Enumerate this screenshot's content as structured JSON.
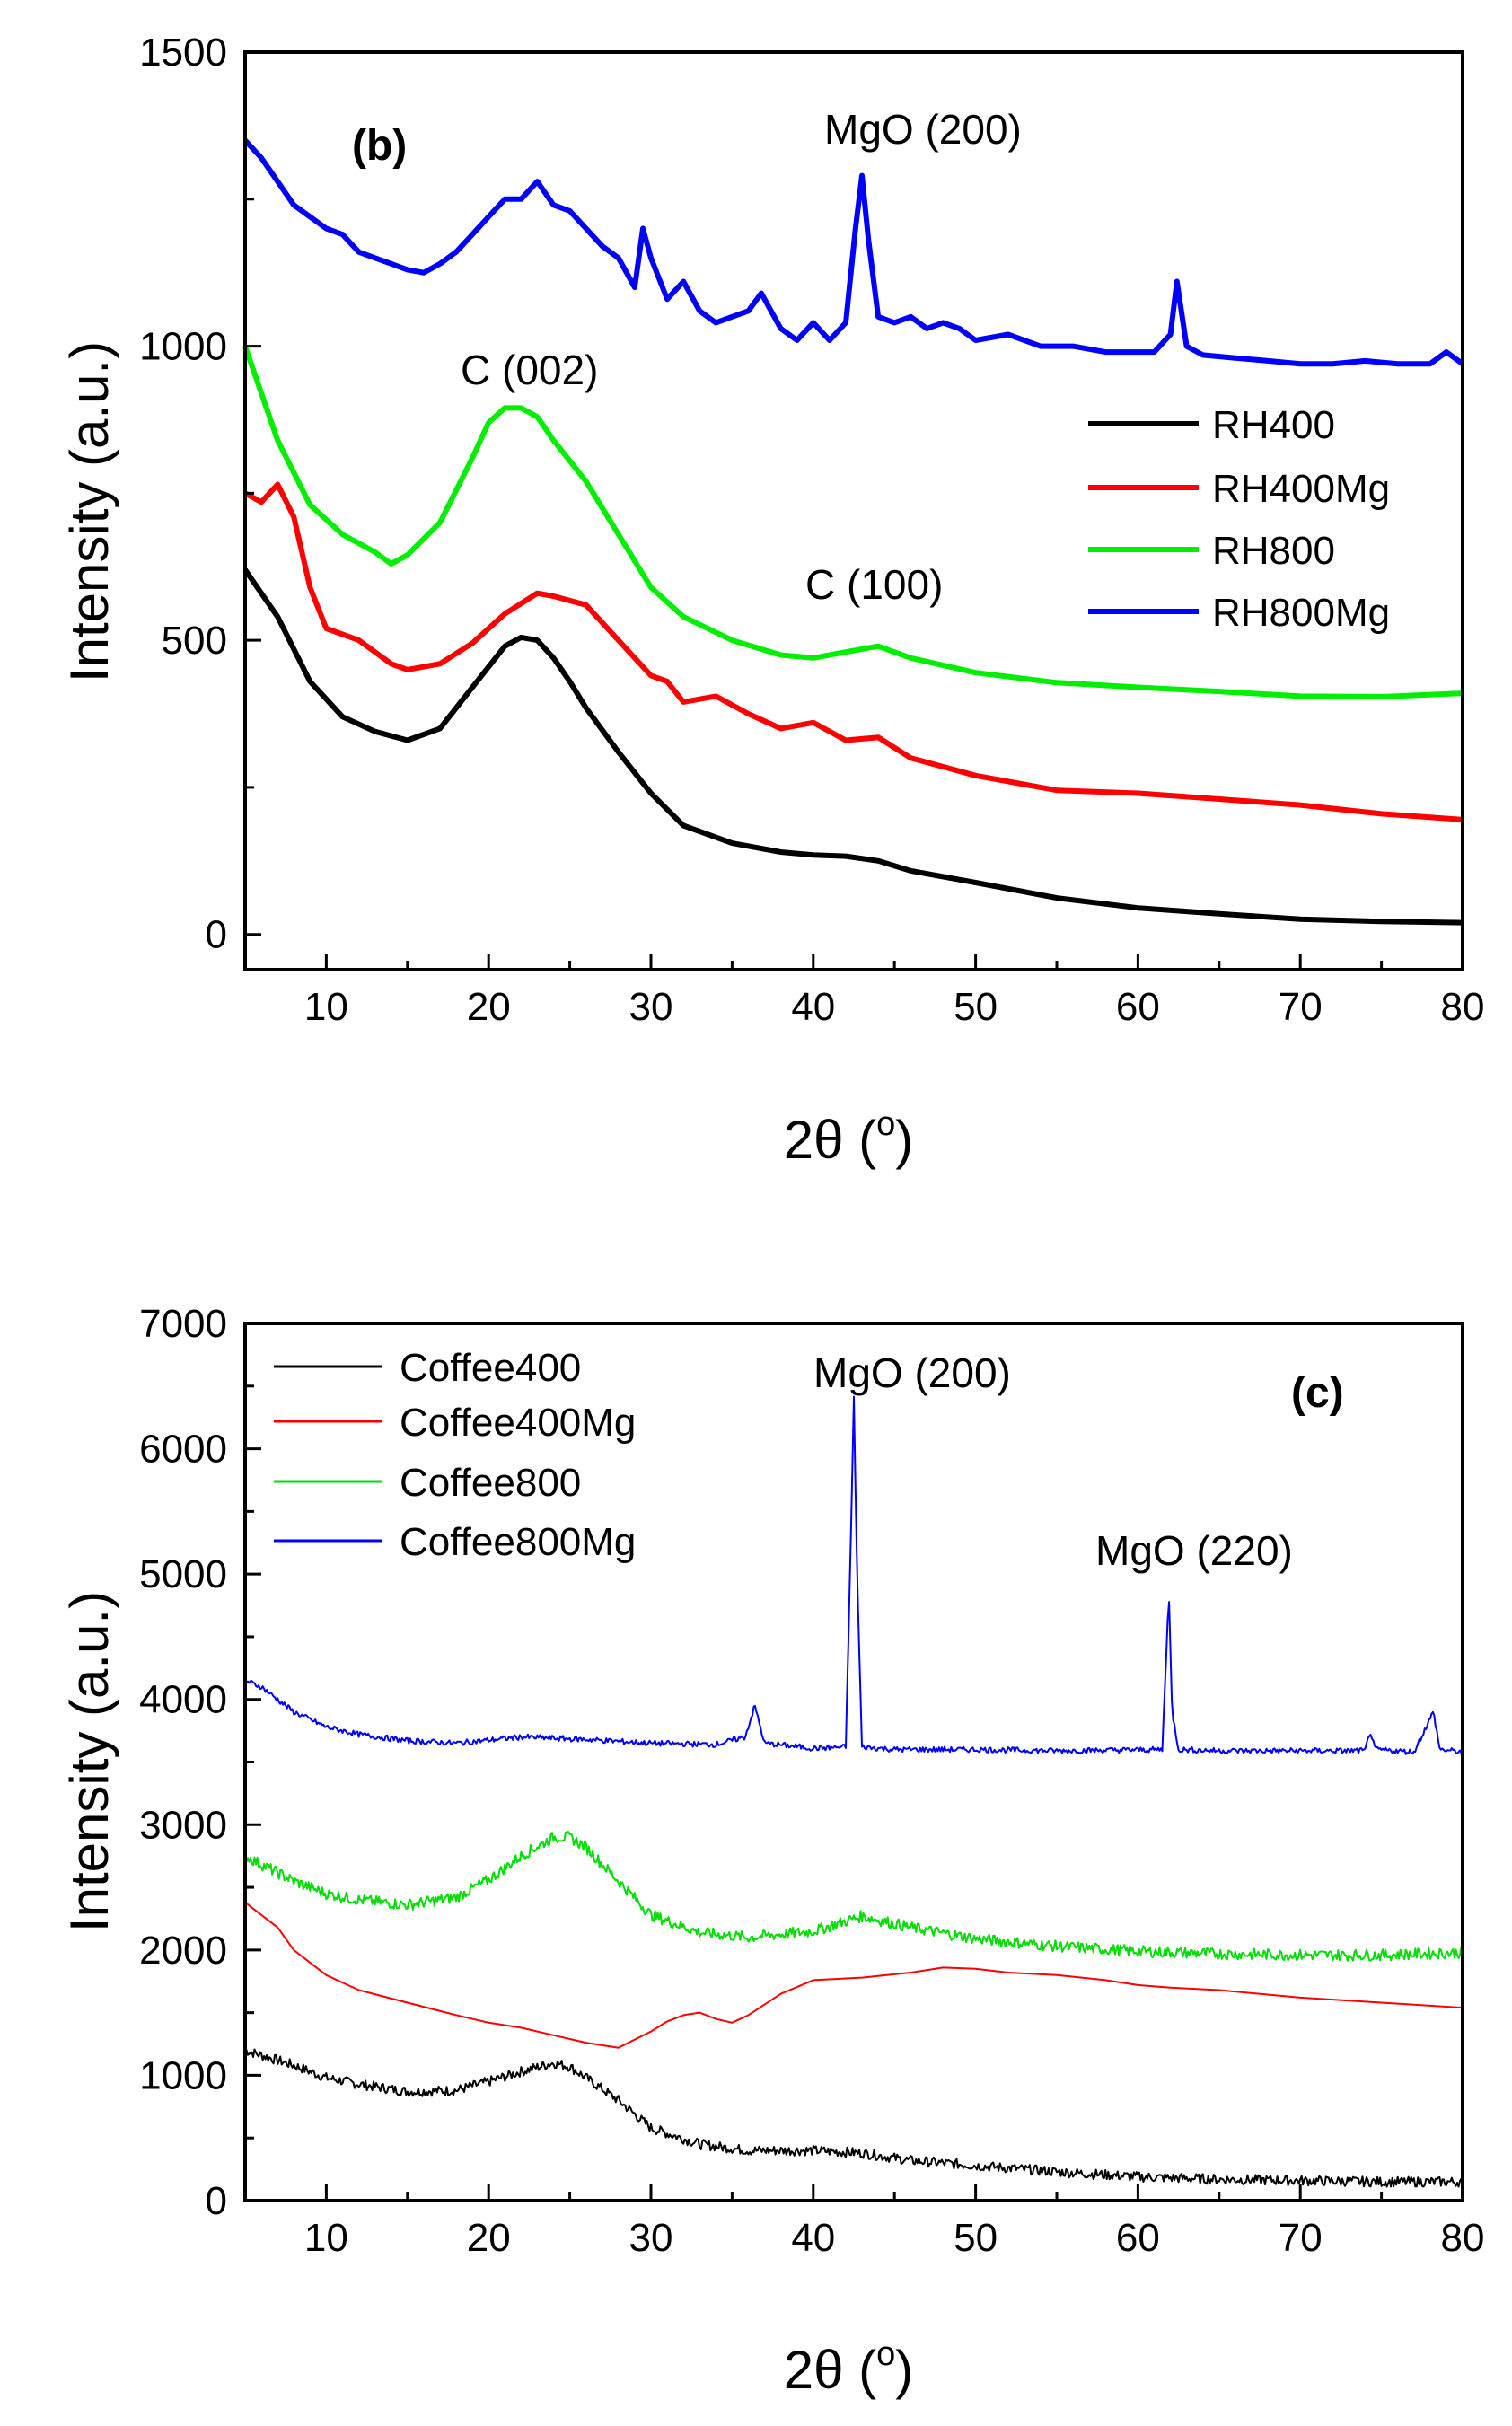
{
  "chart_data": [
    {
      "type": "line",
      "panel_label": "(b)",
      "xlabel": "2θ (",
      "xlabel_sup": "o",
      "xlabel_close": ")",
      "ylabel": "Intensity (a.u.)",
      "xlim": [
        5,
        80
      ],
      "ylim": [
        -60,
        1500
      ],
      "xticks": [
        10,
        20,
        30,
        40,
        50,
        60,
        70,
        80
      ],
      "yticks": [
        0,
        500,
        1000,
        1500
      ],
      "grid": false,
      "legend_position": "right, middle",
      "annotations": [
        {
          "text": "MgO (200)",
          "x": 43,
          "y": 1375
        },
        {
          "text": "C (002)",
          "x": 22,
          "y": 975
        },
        {
          "text": "C (100)",
          "x": 43,
          "y": 575
        }
      ],
      "series": [
        {
          "name": "RH400",
          "color": "#000000",
          "line_width": 6,
          "x": [
            5,
            7,
            9,
            11,
            13,
            15,
            17,
            19,
            20,
            21,
            22,
            23,
            24,
            25,
            26,
            28,
            30,
            32,
            35,
            38,
            40,
            42,
            44,
            46,
            50,
            55,
            60,
            65,
            70,
            75,
            80
          ],
          "y": [
            620,
            540,
            430,
            370,
            345,
            330,
            350,
            420,
            455,
            490,
            505,
            500,
            470,
            430,
            385,
            310,
            240,
            185,
            155,
            140,
            135,
            133,
            125,
            108,
            88,
            62,
            45,
            35,
            26,
            22,
            20
          ]
        },
        {
          "name": "RH400Mg",
          "color": "#ff0000",
          "line_width": 6,
          "x": [
            5,
            6,
            7,
            8,
            9,
            10,
            12,
            14,
            15,
            17,
            19,
            21,
            23,
            24,
            26,
            28,
            30,
            31,
            32,
            34,
            36,
            38,
            40,
            42,
            44,
            46,
            50,
            55,
            60,
            65,
            70,
            75,
            80
          ],
          "y": [
            750,
            735,
            765,
            710,
            590,
            520,
            500,
            460,
            450,
            460,
            495,
            545,
            580,
            575,
            560,
            500,
            440,
            430,
            395,
            405,
            375,
            350,
            360,
            330,
            335,
            300,
            270,
            245,
            240,
            230,
            220,
            205,
            195
          ]
        },
        {
          "name": "RH800",
          "color": "#00ee00",
          "line_width": 6,
          "x": [
            5,
            7,
            9,
            11,
            13,
            14,
            15,
            17,
            19,
            20,
            21,
            22,
            23,
            24,
            26,
            28,
            30,
            32,
            35,
            38,
            40,
            42,
            44,
            46,
            50,
            55,
            60,
            65,
            70,
            75,
            80
          ],
          "y": [
            1000,
            840,
            730,
            680,
            650,
            630,
            645,
            700,
            810,
            870,
            895,
            895,
            880,
            840,
            770,
            680,
            590,
            540,
            500,
            475,
            470,
            480,
            490,
            470,
            445,
            428,
            420,
            413,
            405,
            404,
            410
          ]
        },
        {
          "name": "RH800Mg",
          "color": "#0000ff",
          "line_width": 6,
          "x": [
            5,
            6,
            7,
            8,
            9,
            10,
            11,
            12,
            13,
            14,
            15,
            16,
            17,
            18,
            19,
            20,
            21,
            22,
            23,
            24,
            25,
            26,
            27,
            28,
            29,
            29.5,
            30,
            31,
            32,
            33,
            34,
            35,
            36,
            36.8,
            38,
            39,
            40,
            41,
            42,
            42.6,
            43,
            43.4,
            44,
            45,
            46,
            47,
            48,
            49,
            50,
            52,
            54,
            56,
            58,
            60,
            61,
            62,
            62.4,
            63,
            64,
            66,
            68,
            70,
            72,
            74,
            76,
            78,
            79,
            80
          ],
          "y": [
            1350,
            1320,
            1280,
            1240,
            1220,
            1200,
            1190,
            1160,
            1150,
            1140,
            1130,
            1125,
            1140,
            1160,
            1190,
            1220,
            1250,
            1250,
            1280,
            1240,
            1230,
            1200,
            1170,
            1150,
            1100,
            1200,
            1150,
            1080,
            1110,
            1060,
            1040,
            1050,
            1060,
            1090,
            1030,
            1010,
            1040,
            1010,
            1040,
            1200,
            1290,
            1180,
            1050,
            1040,
            1050,
            1030,
            1040,
            1030,
            1010,
            1020,
            1000,
            1000,
            990,
            990,
            990,
            1020,
            1110,
            1000,
            985,
            980,
            975,
            970,
            970,
            975,
            970,
            970,
            990,
            970
          ]
        }
      ]
    },
    {
      "type": "line",
      "panel_label": "(c)",
      "xlabel": "2θ (",
      "xlabel_sup": "o",
      "xlabel_close": ")",
      "ylabel": "Intensity (a.u.)",
      "xlim": [
        5,
        80
      ],
      "ylim": [
        0,
        7000
      ],
      "xticks": [
        10,
        20,
        30,
        40,
        50,
        60,
        70,
        80
      ],
      "yticks": [
        0,
        1000,
        2000,
        3000,
        4000,
        5000,
        6000,
        7000
      ],
      "grid": false,
      "legend_position": "top-left",
      "annotations": [
        {
          "text": "MgO (200)",
          "x": 43,
          "y": 6400
        },
        {
          "text": "MgO (220)",
          "x": 62,
          "y": 5000
        }
      ],
      "series": [
        {
          "name": "Coffee400",
          "color": "#000000",
          "line_width": 2,
          "noise": 40,
          "x": [
            5,
            8,
            10,
            12,
            15,
            18,
            20,
            22,
            24,
            25,
            26,
            28,
            30,
            33,
            36,
            40,
            43,
            46,
            50,
            55,
            60,
            65,
            70,
            75,
            80
          ],
          "y": [
            1200,
            1080,
            980,
            930,
            870,
            880,
            950,
            1030,
            1100,
            1070,
            980,
            800,
            580,
            450,
            400,
            400,
            380,
            320,
            280,
            230,
            190,
            170,
            160,
            150,
            150
          ]
        },
        {
          "name": "Coffee400Mg",
          "color": "#ff0000",
          "line_width": 2,
          "x": [
            5,
            6,
            7,
            8,
            10,
            12,
            15,
            18,
            20,
            22,
            24,
            26,
            28,
            30,
            31,
            32,
            33,
            34,
            35,
            36,
            38,
            40,
            43,
            46,
            48,
            50,
            52,
            55,
            58,
            60,
            62,
            65,
            70,
            75,
            80
          ],
          "y": [
            2380,
            2280,
            2180,
            2000,
            1800,
            1680,
            1580,
            1480,
            1420,
            1380,
            1320,
            1260,
            1220,
            1350,
            1430,
            1480,
            1500,
            1450,
            1420,
            1480,
            1650,
            1760,
            1780,
            1820,
            1860,
            1850,
            1820,
            1800,
            1760,
            1720,
            1700,
            1680,
            1620,
            1580,
            1540
          ]
        },
        {
          "name": "Coffee800",
          "color": "#00dd00",
          "line_width": 2,
          "noise": 45,
          "x": [
            5,
            8,
            10,
            12,
            15,
            18,
            20,
            22,
            24,
            25,
            26,
            28,
            30,
            33,
            36,
            40,
            43,
            46,
            50,
            55,
            60,
            65,
            70,
            75,
            80
          ],
          "y": [
            2750,
            2550,
            2450,
            2400,
            2360,
            2420,
            2560,
            2750,
            2900,
            2900,
            2820,
            2550,
            2280,
            2140,
            2100,
            2150,
            2270,
            2180,
            2090,
            2030,
            1990,
            1970,
            1960,
            1960,
            1980
          ]
        },
        {
          "name": "Coffee800Mg",
          "color": "#0000ff",
          "line_width": 2,
          "noise": 22,
          "x": [
            5,
            6,
            8,
            10,
            12,
            15,
            18,
            22,
            26,
            30,
            34,
            35.8,
            36.4,
            37,
            40,
            42,
            42.3,
            42.5,
            42.7,
            43,
            45,
            50,
            55,
            61.5,
            61.9,
            62.1,
            62.5,
            65,
            70,
            74,
            74.3,
            74.6,
            77,
            78.2,
            78.6,
            80
          ],
          "y": [
            4150,
            4100,
            3900,
            3780,
            3720,
            3670,
            3650,
            3700,
            3680,
            3650,
            3640,
            3700,
            3950,
            3650,
            3610,
            3620,
            5200,
            6400,
            5000,
            3620,
            3600,
            3600,
            3590,
            3600,
            4850,
            3900,
            3600,
            3590,
            3590,
            3590,
            3750,
            3600,
            3580,
            3900,
            3600,
            3580
          ]
        }
      ]
    }
  ]
}
